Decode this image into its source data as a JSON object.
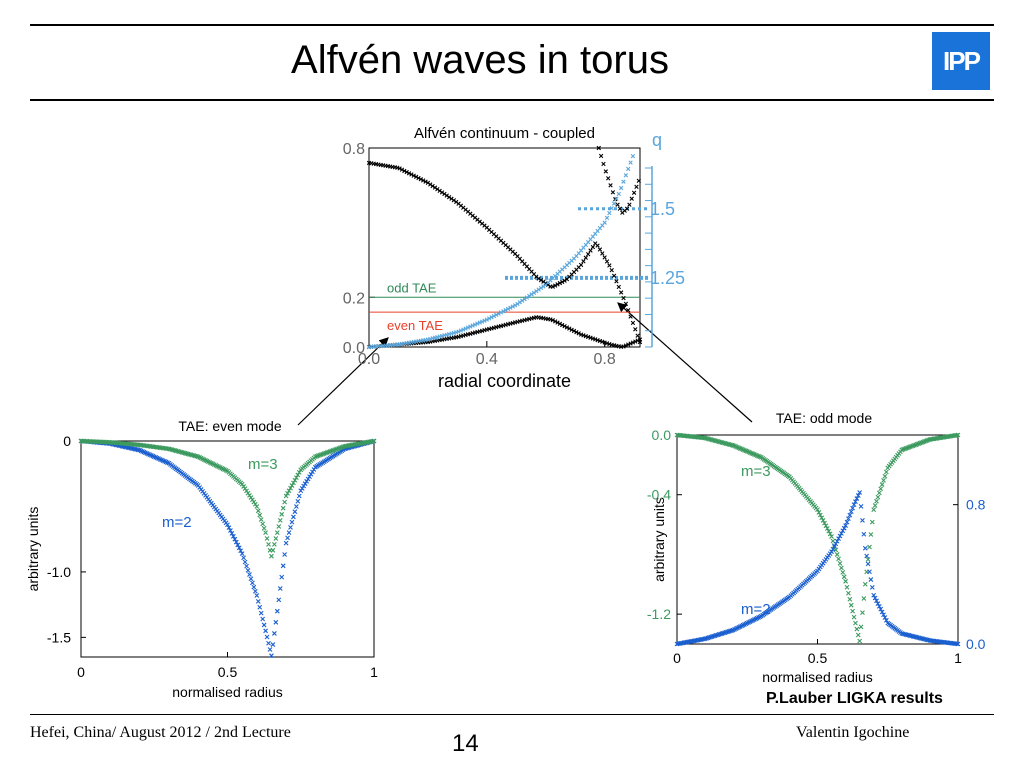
{
  "slide": {
    "title": "Alfvén waves in torus",
    "logo_text": "IPP",
    "footer_left": "Hefei, China/ August 2012 / 2nd Lecture",
    "page_number": "14",
    "footer_right": "Valentin Igochine",
    "credit": "P.Lauber LIGKA results",
    "colors": {
      "accent_blue": "#1a73d9",
      "q_blue": "#5aa6dc",
      "green": "#2e8b57",
      "red": "#e8402a"
    }
  },
  "chart_data": [
    {
      "type": "scatter",
      "title": "Alfvén continuum - coupled",
      "xlabel": "radial coordinate",
      "x_ticks": [
        "0.0",
        "0.4",
        "0.8"
      ],
      "y_ticks": [
        "0.0",
        "0.2",
        "0.8"
      ],
      "xlim": [
        0.0,
        0.92
      ],
      "ylim": [
        0.0,
        0.8
      ],
      "right_axis": {
        "label": "q",
        "ticks": [
          "1.25",
          "1.5"
        ],
        "ylim": [
          1.0,
          1.72
        ]
      },
      "annotations": [
        {
          "text": "odd TAE",
          "y": 0.2,
          "color": "#2e8b57"
        },
        {
          "text": "even TAE",
          "y": 0.14,
          "color": "#e8402a"
        }
      ],
      "series": [
        {
          "color": "#000000",
          "x": [
            0.0,
            0.1,
            0.2,
            0.3,
            0.4,
            0.5,
            0.57,
            0.62,
            0.67,
            0.72,
            0.77,
            0.82,
            0.87,
            0.92
          ],
          "y": [
            0.74,
            0.72,
            0.66,
            0.58,
            0.48,
            0.37,
            0.28,
            0.24,
            0.27,
            0.33,
            0.42,
            0.32,
            0.18,
            0.02
          ]
        },
        {
          "color": "#000000",
          "x": [
            0.0,
            0.1,
            0.2,
            0.3,
            0.4,
            0.5,
            0.57,
            0.62,
            0.67,
            0.72,
            0.77,
            0.82,
            0.86,
            0.9,
            0.92
          ],
          "y": [
            0.0,
            0.01,
            0.02,
            0.04,
            0.07,
            0.1,
            0.12,
            0.11,
            0.08,
            0.05,
            0.03,
            0.01,
            0.0,
            0.02,
            0.03
          ]
        },
        {
          "color": "#000000",
          "x": [
            0.78,
            0.8,
            0.82,
            0.84,
            0.86,
            0.88,
            0.9,
            0.92
          ],
          "y": [
            0.8,
            0.72,
            0.65,
            0.58,
            0.54,
            0.56,
            0.62,
            0.68
          ]
        },
        {
          "color": "#5aa6dc",
          "x": [
            0.0,
            0.1,
            0.2,
            0.3,
            0.4,
            0.5,
            0.6,
            0.7,
            0.8,
            0.85,
            0.9
          ],
          "y": [
            0.0,
            0.01,
            0.03,
            0.06,
            0.11,
            0.17,
            0.25,
            0.36,
            0.5,
            0.62,
            0.78
          ]
        }
      ],
      "q_markers": [
        1.5,
        1.25
      ]
    },
    {
      "type": "scatter",
      "title": "TAE: even mode",
      "xlabel": "normalised radius",
      "ylabel": "arbitrary units",
      "x_ticks": [
        "0",
        "0.5",
        "1"
      ],
      "y_ticks": [
        "0",
        "-1.0",
        "-1.5"
      ],
      "xlim": [
        0,
        1
      ],
      "ylim": [
        -1.65,
        0
      ],
      "series": [
        {
          "name": "m=2",
          "color": "#1a5fd0",
          "x": [
            0,
            0.1,
            0.2,
            0.3,
            0.4,
            0.5,
            0.55,
            0.6,
            0.63,
            0.65,
            0.67,
            0.7,
            0.75,
            0.8,
            0.9,
            1.0
          ],
          "y": [
            0,
            -0.02,
            -0.07,
            -0.17,
            -0.34,
            -0.64,
            -0.86,
            -1.18,
            -1.45,
            -1.64,
            -1.3,
            -0.78,
            -0.38,
            -0.2,
            -0.06,
            0
          ]
        },
        {
          "name": "m=3",
          "color": "#3c9a5f",
          "x": [
            0,
            0.1,
            0.2,
            0.3,
            0.4,
            0.5,
            0.55,
            0.6,
            0.63,
            0.65,
            0.67,
            0.7,
            0.75,
            0.8,
            0.9,
            1.0
          ],
          "y": [
            0,
            -0.01,
            -0.03,
            -0.06,
            -0.12,
            -0.23,
            -0.33,
            -0.5,
            -0.7,
            -0.88,
            -0.7,
            -0.42,
            -0.22,
            -0.12,
            -0.04,
            0
          ]
        }
      ]
    },
    {
      "type": "scatter",
      "title": "TAE: odd mode",
      "xlabel": "normalised radius",
      "ylabel": "arbitrary units",
      "x_ticks": [
        "0",
        "0.5",
        "1"
      ],
      "y_ticks": [
        "0.0",
        "-0.4",
        "-1.2"
      ],
      "xlim": [
        0,
        1
      ],
      "ylim": [
        -1.4,
        0
      ],
      "right_axis": {
        "ticks": [
          "0.8",
          "0.0"
        ],
        "ylim": [
          0,
          1.2
        ]
      },
      "series": [
        {
          "name": "m=3",
          "color": "#3c9a5f",
          "axis": "left",
          "x": [
            0,
            0.1,
            0.2,
            0.3,
            0.4,
            0.5,
            0.55,
            0.6,
            0.63,
            0.65,
            0.67,
            0.7,
            0.75,
            0.8,
            0.9,
            1.0
          ],
          "y": [
            0,
            -0.02,
            -0.07,
            -0.15,
            -0.28,
            -0.5,
            -0.68,
            -0.98,
            -1.22,
            -1.38,
            -1.0,
            -0.5,
            -0.22,
            -0.1,
            -0.03,
            0
          ]
        },
        {
          "name": "m=2",
          "color": "#1a5fd0",
          "axis": "right",
          "x": [
            0,
            0.1,
            0.2,
            0.3,
            0.4,
            0.5,
            0.55,
            0.6,
            0.63,
            0.65,
            0.67,
            0.7,
            0.75,
            0.8,
            0.9,
            1.0
          ],
          "y": [
            0,
            0.03,
            0.08,
            0.16,
            0.27,
            0.42,
            0.53,
            0.68,
            0.8,
            0.87,
            0.55,
            0.28,
            0.12,
            0.06,
            0.02,
            0
          ]
        }
      ]
    }
  ]
}
